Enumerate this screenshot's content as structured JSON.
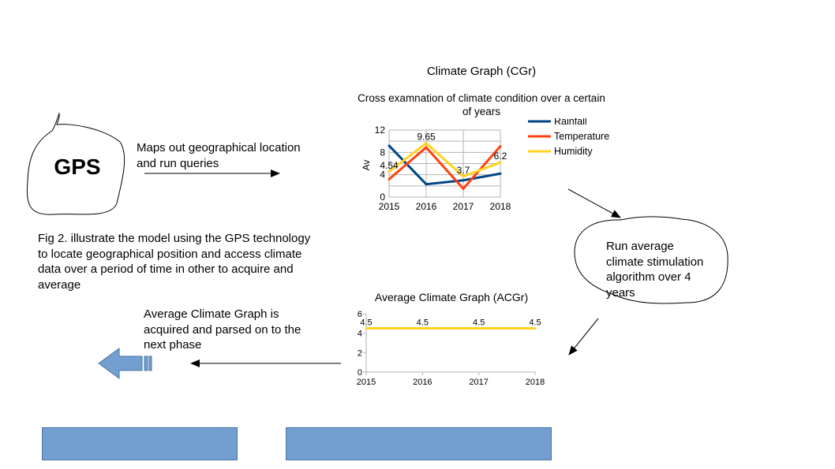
{
  "gps_cloud": {
    "label": "GPS"
  },
  "gps_caption": {
    "lines": [
      "Maps out geographical location",
      "and run queries"
    ]
  },
  "figure_caption": {
    "lines": [
      "Fig 2. illustrate the model using the GPS technology",
      "to locate geographical position and access climate",
      "data over a period of time in other to acquire and",
      "average"
    ]
  },
  "avg_cloud": {
    "lines": [
      "Run average",
      "climate stimulation",
      "algorithm over 4",
      "years"
    ]
  },
  "acquired_caption": {
    "lines": [
      "Average Climate Graph is",
      "acquired and parsed on to the",
      "next phase"
    ]
  },
  "shape_colors": {
    "fill": "#729fcf",
    "stroke": "#4a76a8"
  },
  "chart_data": [
    {
      "type": "line",
      "title": "Climate Graph (CGr)",
      "subtitle_lines": [
        "Cross examnation of climate condition over a certain",
        "of years"
      ],
      "ylabel": "Av",
      "categories": [
        "2015",
        "2016",
        "2017",
        "2018"
      ],
      "yticks": [
        "0",
        "4",
        "8",
        "12"
      ],
      "ylim": [
        0,
        12
      ],
      "grid": true,
      "legend_position": "right",
      "series": [
        {
          "name": "Rainfall",
          "color": "#004586",
          "values": [
            9.2,
            2.3,
            3.0,
            4.2
          ]
        },
        {
          "name": "Temperature",
          "color": "#ff420e",
          "values": [
            3.2,
            8.9,
            1.5,
            9.1
          ]
        },
        {
          "name": "Humidity",
          "color": "#ffd320",
          "values": [
            4.54,
            9.65,
            3.7,
            6.2
          ]
        }
      ],
      "data_labels": [
        "4.54",
        "9.65",
        "3.7",
        "6.2"
      ]
    },
    {
      "type": "line",
      "title": "Average Climate Graph (ACGr)",
      "categories": [
        "2015",
        "2016",
        "2017",
        "2018"
      ],
      "yticks": [
        "0",
        "2",
        "4",
        "6"
      ],
      "ylim": [
        0,
        6
      ],
      "grid": false,
      "series": [
        {
          "color": "#ffd320",
          "values": [
            4.5,
            4.5,
            4.5,
            4.5
          ]
        }
      ],
      "data_labels": [
        "4.5",
        "4.5",
        "4.5",
        "4.5"
      ]
    }
  ]
}
